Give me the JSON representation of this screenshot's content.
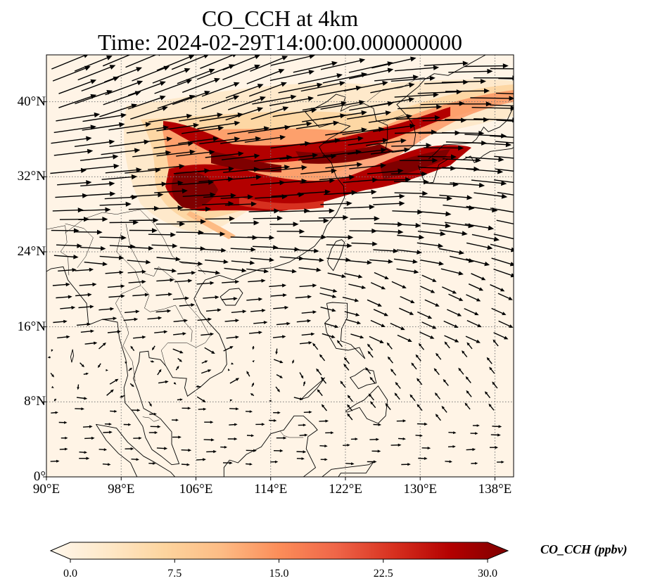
{
  "title": {
    "line1": "CO_CCH at 4km",
    "line2": "Time: 2024-02-29T14:00:00.000000000"
  },
  "map": {
    "projection": "PlateCarree",
    "lon_range": [
      90,
      140
    ],
    "lat_range": [
      0,
      45
    ],
    "gridlines": "dotted",
    "lon_ticks": [
      "90°E",
      "98°E",
      "106°E",
      "114°E",
      "122°E",
      "130°E",
      "138°E"
    ],
    "lon_tick_values": [
      90,
      98,
      106,
      114,
      122,
      130,
      138
    ],
    "lat_ticks": [
      "0°",
      "8°N",
      "16°N",
      "24°N",
      "32°N",
      "40°N"
    ],
    "lat_tick_values": [
      0,
      8,
      16,
      24,
      32,
      40
    ],
    "field": "CO_CCH",
    "overlay": "wind vectors (arrows)"
  },
  "colorbar": {
    "label": "CO_CCH (ppbv)",
    "ticks": [
      "0.0",
      "7.5",
      "15.0",
      "22.5",
      "30.0"
    ],
    "tick_values": [
      0,
      7.5,
      15,
      22.5,
      30
    ],
    "range": [
      0,
      30
    ],
    "colormap": "OrRd",
    "extend": "both",
    "colors": [
      "#fff7ec",
      "#fee8c8",
      "#fdd49e",
      "#fdbb84",
      "#fc8d59",
      "#ef6548",
      "#d7301f",
      "#b30000",
      "#7f0000"
    ]
  }
}
